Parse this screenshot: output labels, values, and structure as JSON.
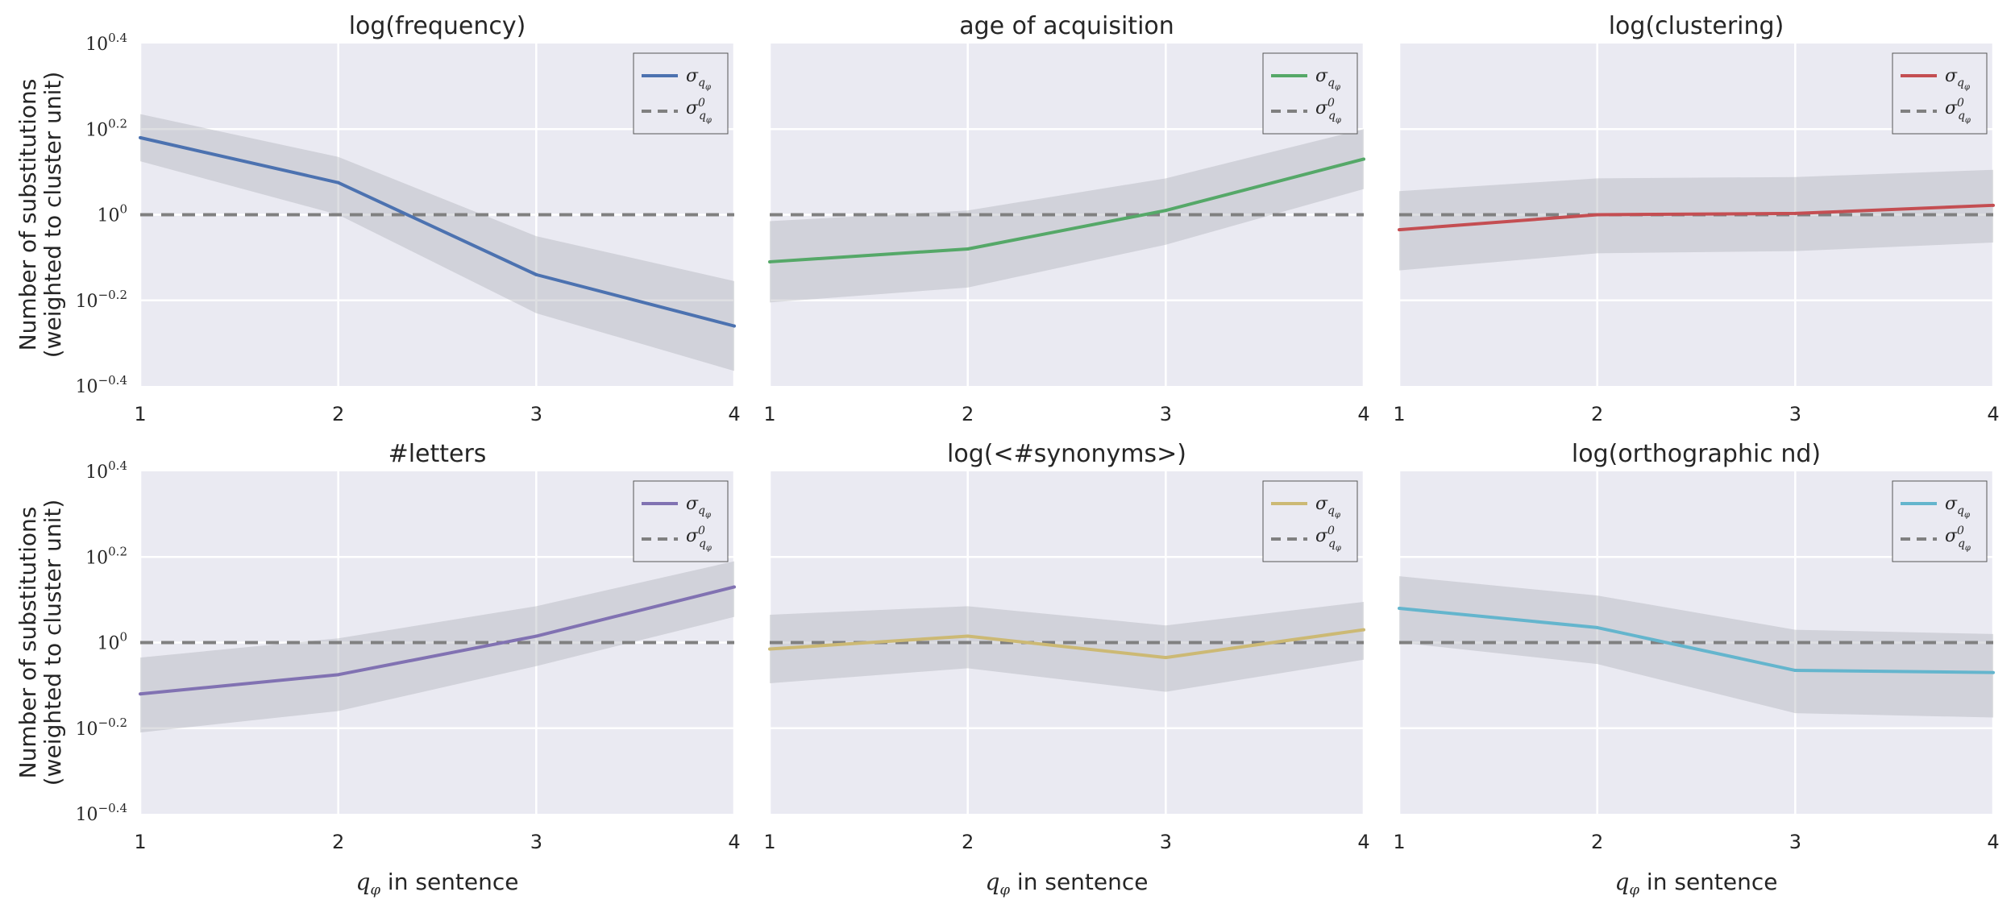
{
  "colors": {
    "background": "#eaeaf2",
    "grid": "#ffffff",
    "band": "#a8acb4",
    "baseline": "#808080"
  },
  "chart_data": [
    {
      "type": "line",
      "title": "log(frequency)",
      "color": "#4c72b0",
      "x": [
        1,
        2,
        3,
        4
      ],
      "series": [
        {
          "name": "σ_qφ",
          "values": [
            0.18,
            0.075,
            -0.14,
            -0.26
          ],
          "lower": [
            0.125,
            0.0,
            -0.23,
            -0.365
          ],
          "upper": [
            0.235,
            0.135,
            -0.05,
            -0.155
          ]
        },
        {
          "name": "σ⁰_qφ",
          "values": [
            0,
            0,
            0,
            0
          ],
          "style": "dashed"
        }
      ],
      "ylim": [
        -0.4,
        0.4
      ],
      "log_scale": true,
      "yticks": [
        "-0.4",
        "-0.2",
        "0",
        "0.2",
        "0.4"
      ],
      "y_base": "10",
      "xticks": [
        "1",
        "2",
        "3",
        "4"
      ],
      "ylabel": [
        "Number of substitutions",
        "(weighted to cluster unit)"
      ],
      "xlabel": "",
      "grid": true,
      "legend": "top-right"
    },
    {
      "type": "line",
      "title": "age of acquisition",
      "color": "#55a868",
      "x": [
        1,
        2,
        3,
        4
      ],
      "series": [
        {
          "name": "σ_qφ",
          "values": [
            -0.11,
            -0.08,
            0.01,
            0.13
          ],
          "lower": [
            -0.205,
            -0.17,
            -0.07,
            0.06
          ],
          "upper": [
            -0.015,
            0.01,
            0.085,
            0.2
          ]
        },
        {
          "name": "σ⁰_qφ",
          "values": [
            0,
            0,
            0,
            0
          ],
          "style": "dashed"
        }
      ],
      "ylim": [
        -0.4,
        0.4
      ],
      "log_scale": true,
      "yticks": [],
      "y_base": "10",
      "xticks": [
        "1",
        "2",
        "3",
        "4"
      ],
      "ylabel": [],
      "xlabel": "",
      "grid": true,
      "legend": "top-right"
    },
    {
      "type": "line",
      "title": "log(clustering)",
      "color": "#c44e52",
      "x": [
        1,
        2,
        3,
        4
      ],
      "series": [
        {
          "name": "σ_qφ",
          "values": [
            -0.035,
            0.0,
            0.003,
            0.022
          ],
          "lower": [
            -0.13,
            -0.09,
            -0.085,
            -0.065
          ],
          "upper": [
            0.055,
            0.085,
            0.088,
            0.105
          ]
        },
        {
          "name": "σ⁰_qφ",
          "values": [
            0,
            0,
            0,
            0
          ],
          "style": "dashed"
        }
      ],
      "ylim": [
        -0.4,
        0.4
      ],
      "log_scale": true,
      "yticks": [],
      "y_base": "10",
      "xticks": [
        "1",
        "2",
        "3",
        "4"
      ],
      "ylabel": [],
      "xlabel": "",
      "grid": true,
      "legend": "top-right"
    },
    {
      "type": "line",
      "title": "#letters",
      "color": "#8172b2",
      "x": [
        1,
        2,
        3,
        4
      ],
      "series": [
        {
          "name": "σ_qφ",
          "values": [
            -0.12,
            -0.075,
            0.015,
            0.13
          ],
          "lower": [
            -0.21,
            -0.16,
            -0.055,
            0.06
          ],
          "upper": [
            -0.035,
            0.01,
            0.085,
            0.19
          ]
        },
        {
          "name": "σ⁰_qφ",
          "values": [
            0,
            0,
            0,
            0
          ],
          "style": "dashed"
        }
      ],
      "ylim": [
        -0.4,
        0.4
      ],
      "log_scale": true,
      "yticks": [
        "-0.4",
        "-0.2",
        "0",
        "0.2",
        "0.4"
      ],
      "y_base": "10",
      "xticks": [
        "1",
        "2",
        "3",
        "4"
      ],
      "ylabel": [
        "Number of substitutions",
        "(weighted to cluster unit)"
      ],
      "xlabel": "q_φ in sentence",
      "grid": true,
      "legend": "top-right"
    },
    {
      "type": "line",
      "title": "log(<#synonyms>)",
      "color": "#ccb974",
      "x": [
        1,
        2,
        3,
        4
      ],
      "series": [
        {
          "name": "σ_qφ",
          "values": [
            -0.015,
            0.015,
            -0.035,
            0.03
          ],
          "lower": [
            -0.095,
            -0.06,
            -0.115,
            -0.04
          ],
          "upper": [
            0.065,
            0.085,
            0.04,
            0.095
          ]
        },
        {
          "name": "σ⁰_qφ",
          "values": [
            0,
            0,
            0,
            0
          ],
          "style": "dashed"
        }
      ],
      "ylim": [
        -0.4,
        0.4
      ],
      "log_scale": true,
      "yticks": [],
      "y_base": "10",
      "xticks": [
        "1",
        "2",
        "3",
        "4"
      ],
      "ylabel": [],
      "xlabel": "q_φ in sentence",
      "grid": true,
      "legend": "top-right"
    },
    {
      "type": "line",
      "title": "log(orthographic nd)",
      "color": "#64b5cd",
      "x": [
        1,
        2,
        3,
        4
      ],
      "series": [
        {
          "name": "σ_qφ",
          "values": [
            0.08,
            0.035,
            -0.065,
            -0.07
          ],
          "lower": [
            0.0,
            -0.05,
            -0.165,
            -0.175
          ],
          "upper": [
            0.155,
            0.11,
            0.03,
            0.02
          ]
        },
        {
          "name": "σ⁰_qφ",
          "values": [
            0,
            0,
            0,
            0
          ],
          "style": "dashed"
        }
      ],
      "ylim": [
        -0.4,
        0.4
      ],
      "log_scale": true,
      "yticks": [],
      "y_base": "10",
      "xticks": [
        "1",
        "2",
        "3",
        "4"
      ],
      "ylabel": [],
      "xlabel": "q_φ in sentence",
      "grid": true,
      "legend": "top-right"
    }
  ]
}
